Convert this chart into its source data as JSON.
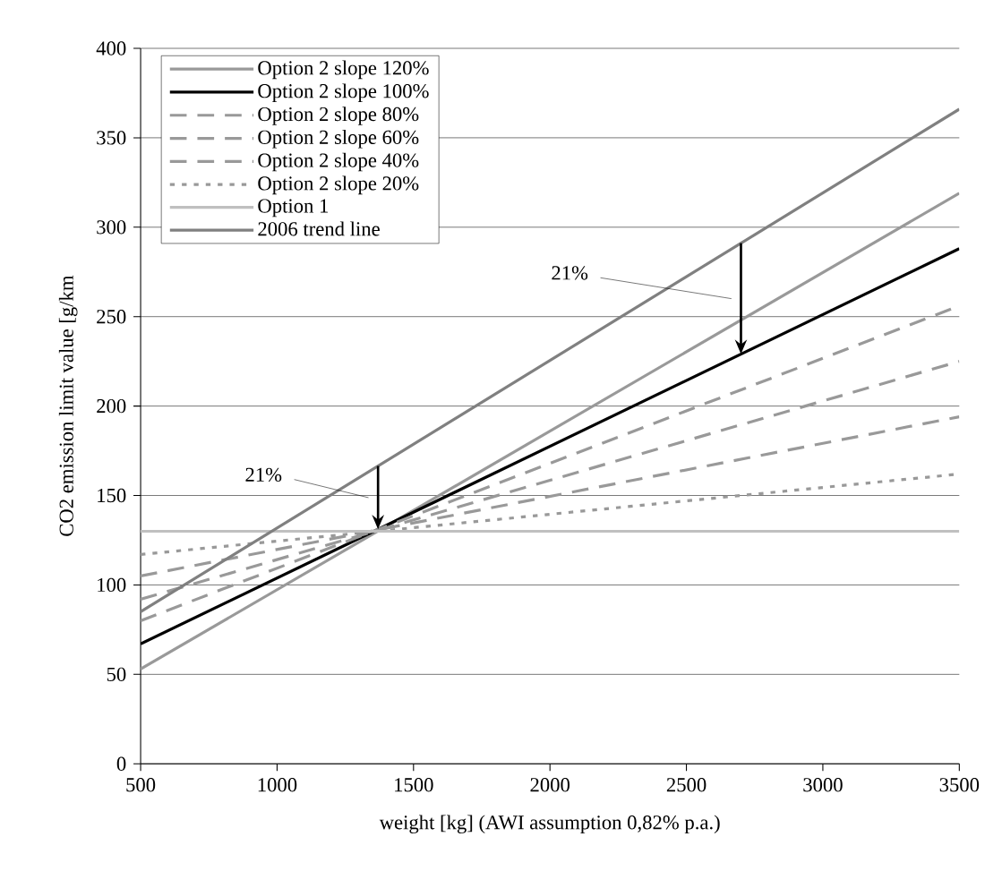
{
  "chart_data": {
    "type": "line",
    "xlabel": "weight [kg] (AWI assumption 0,82% p.a.)",
    "ylabel": "CO2 emission limit value [g/km",
    "x": [
      500,
      3500
    ],
    "series": [
      {
        "name": "Option 2 slope 120%",
        "color": "#999999",
        "values": [
          53,
          319
        ],
        "line_style": "solid"
      },
      {
        "name": "Option 2 slope 100%",
        "color": "#000000",
        "values": [
          67,
          288
        ],
        "line_style": "solid"
      },
      {
        "name": "Option 2 slope 80%",
        "color": "#999999",
        "values": [
          80,
          256
        ],
        "line_style": "dashed"
      },
      {
        "name": "Option 2 slope 60%",
        "color": "#999999",
        "values": [
          92,
          225
        ],
        "line_style": "dashed"
      },
      {
        "name": "Option 2 slope 40%",
        "color": "#999999",
        "values": [
          105,
          194
        ],
        "line_style": "dashed"
      },
      {
        "name": "Option 2 slope 20%",
        "color": "#999999",
        "values": [
          117,
          162
        ],
        "line_style": "dotted"
      },
      {
        "name": "Option 1",
        "color": "#c0c0c0",
        "values": [
          130,
          130
        ],
        "line_style": "solid"
      },
      {
        "name": "2006 trend line",
        "color": "#808080",
        "values": [
          85,
          366
        ],
        "line_style": "solid"
      }
    ],
    "xlim": [
      500,
      3500
    ],
    "ylim": [
      0,
      400
    ],
    "xticks": [
      500,
      1000,
      1500,
      2000,
      2500,
      3000,
      3500
    ],
    "yticks": [
      0,
      50,
      100,
      150,
      200,
      250,
      300,
      350,
      400
    ],
    "grid": "y",
    "legend": "top left",
    "marker": "none",
    "annotations": [
      "21%",
      "21%"
    ]
  }
}
